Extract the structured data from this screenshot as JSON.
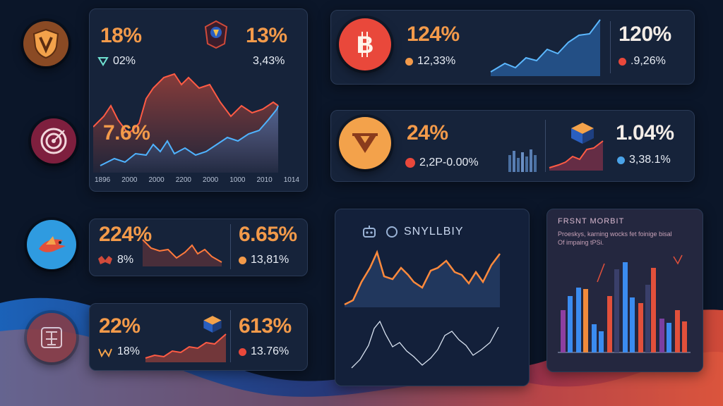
{
  "cards": {
    "main": {
      "left_pct": "18%",
      "left_sub": "02%",
      "right_pct": "13%",
      "right_sub": "3,43%",
      "mid_pct": "7.6%",
      "ticks": [
        "1896",
        "2000",
        "2000",
        "2200",
        "2000",
        "1000",
        "2010",
        "1014"
      ]
    },
    "btc": {
      "pct": "124%",
      "sub": "12,33%",
      "right_pct": "120%",
      "right_sub": ".9,26%"
    },
    "vcoin": {
      "pct": "24%",
      "sub": "2,2P-0.00%",
      "right_pct": "1.04%",
      "right_sub": "3,38.1%"
    },
    "row3": {
      "pct": "224%",
      "sub": "8%",
      "right_pct": "6.65%",
      "right_sub": "13,81%"
    },
    "row4": {
      "pct": "22%",
      "sub": "18%",
      "right_pct": "613%",
      "right_sub": "13.76%"
    },
    "center_panel": {
      "title": "SNYLLBIY"
    },
    "bars_panel": {
      "title": "FRSNT MORBIT",
      "subtitle": "Proeskys, karning wocks fet foinige bisal Of impaing tPSi."
    }
  },
  "colors": {
    "accent_orange": "#f39a4a",
    "accent_red": "#e2503b",
    "accent_blue": "#4aa3e8",
    "card_bg": "#16233a"
  },
  "icons": [
    "shield-v-icon",
    "target-icon",
    "bird-icon",
    "seal-icon",
    "bitcoin-icon",
    "v-coin-icon",
    "cube-icon"
  ]
}
